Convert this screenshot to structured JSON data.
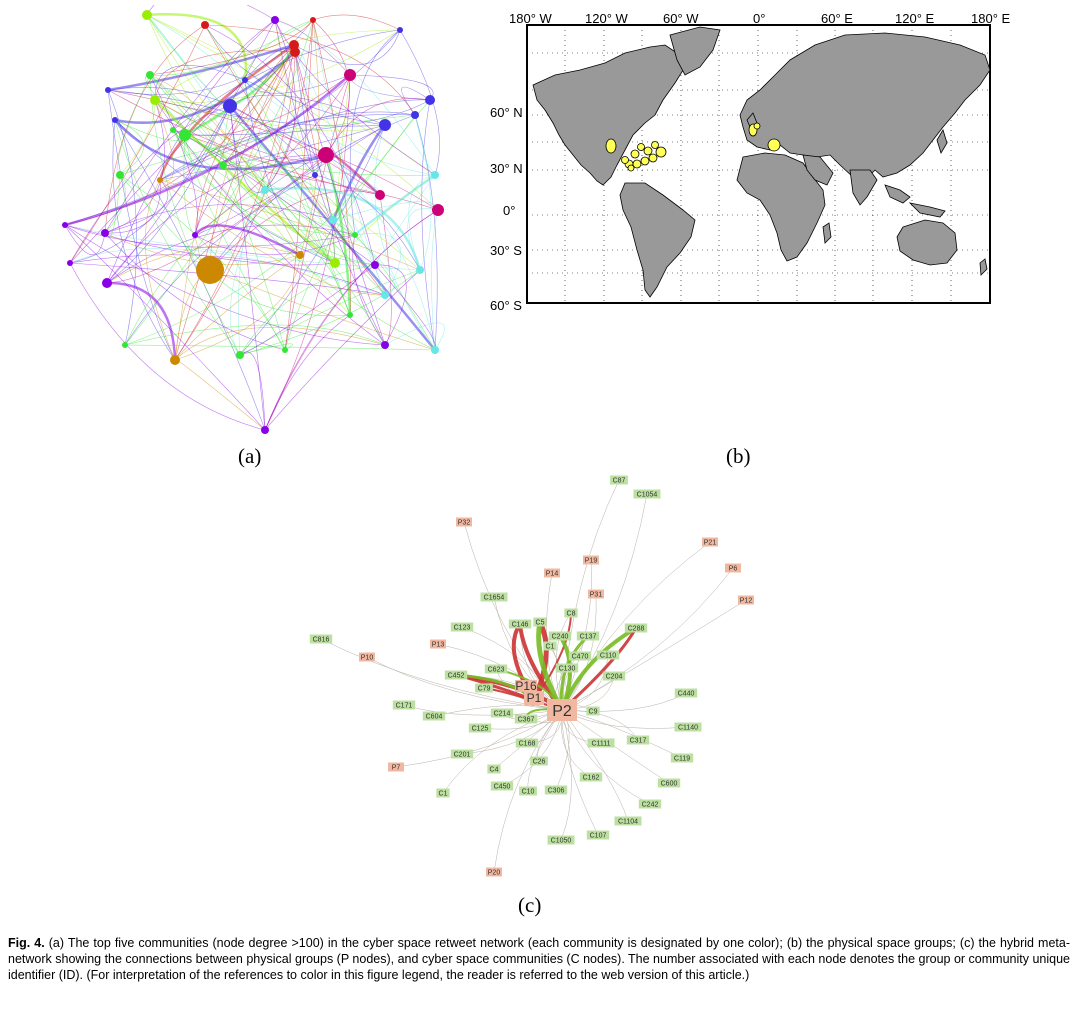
{
  "panel_labels": {
    "a": "(a)",
    "b": "(b)",
    "c": "(c)"
  },
  "panel_a": {
    "community_colors": [
      "#cc8800",
      "#8a00e6",
      "#33e633",
      "#4433e6",
      "#cc0077",
      "#d61a1a",
      "#66e6e6",
      "#99ee00"
    ]
  },
  "panel_b": {
    "top_axis_ticks": [
      "180° W",
      "120° W",
      "60° W",
      "0°",
      "60° E",
      "120° E",
      "180° E"
    ],
    "left_axis_ticks": [
      "60° N",
      "30° N",
      "0°",
      "30° S",
      "60° S"
    ],
    "land_color": "#999999",
    "group_color": "#ffff55"
  },
  "panel_c": {
    "hub_nodes": [
      "P2",
      "P1",
      "P16"
    ],
    "p_nodes": [
      "P32",
      "P19",
      "P14",
      "P31",
      "P21",
      "P6",
      "P12",
      "P13",
      "P10",
      "P7",
      "P20"
    ],
    "c_nodes": [
      "C87",
      "C1054",
      "C1654",
      "C123",
      "C146",
      "C5",
      "C8",
      "C240",
      "C137",
      "C288",
      "C816",
      "C1",
      "C470",
      "C110",
      "C130",
      "C452",
      "C623",
      "C204",
      "C79",
      "C440",
      "C171",
      "C604",
      "C214",
      "C367",
      "C9",
      "C125",
      "C1140",
      "C317",
      "C1111",
      "C168",
      "C119",
      "C201",
      "C26",
      "C4",
      "C162",
      "C600",
      "C1",
      "C450",
      "C10",
      "C306",
      "C242",
      "C1104",
      "C107",
      "C1050"
    ],
    "colors": {
      "red": "#cc3333",
      "green": "#77bb22",
      "p_node": "#f0b8a0",
      "c_node": "#bce0a0"
    }
  },
  "caption": {
    "lead": "Fig. 4.",
    "text": "(a) The top five communities (node degree >100) in the cyber space retweet network (each community is designated by one color); (b) the physical space groups; (c) the hybrid meta-network showing the connections between physical groups (P nodes), and cyber space communities (C nodes). The number associated with each node denotes the group or community unique identifier (ID). (For interpretation of the references to color in this figure legend, the reader is referred to the web version of this article.)"
  }
}
